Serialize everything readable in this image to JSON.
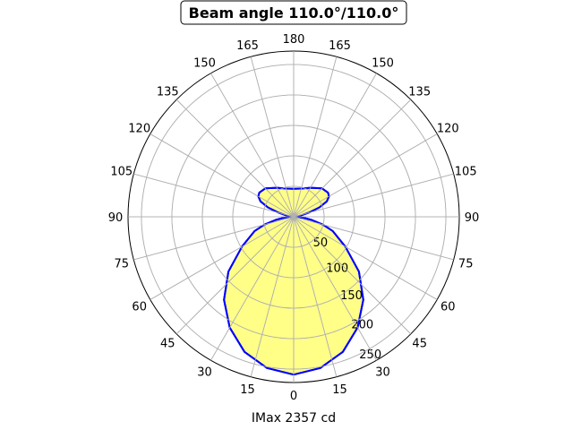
{
  "chart_data": {
    "type": "polar-area",
    "title": "Beam angle 110.0°/110.0°",
    "xlabel": "IMax 2357 cd",
    "angular_ticks": [
      "0",
      "15",
      "30",
      "45",
      "60",
      "75",
      "90",
      "105",
      "120",
      "135",
      "150",
      "165",
      "180",
      "165",
      "150",
      "135",
      "120",
      "105",
      "90",
      "75",
      "60",
      "45",
      "30",
      "15"
    ],
    "radial_ticks": [
      50,
      100,
      150,
      200,
      250
    ],
    "rlim": [
      0,
      272
    ],
    "grid": true,
    "series": [
      {
        "angles_deg": [
          0,
          10,
          20,
          30,
          40,
          50,
          60,
          70,
          75,
          80,
          85,
          90,
          95,
          100,
          105,
          110,
          115,
          120,
          125,
          135,
          150,
          165,
          180
        ],
        "values": [
          259,
          252,
          236,
          210,
          178,
          140,
          98,
          68,
          50,
          30,
          15,
          0,
          5,
          12,
          25,
          45,
          60,
          67,
          69,
          66,
          55,
          48,
          46
        ]
      }
    ],
    "colors": {
      "line": "#0000ff",
      "fill": "#ffff88",
      "grid": "#b0b0b0"
    }
  }
}
